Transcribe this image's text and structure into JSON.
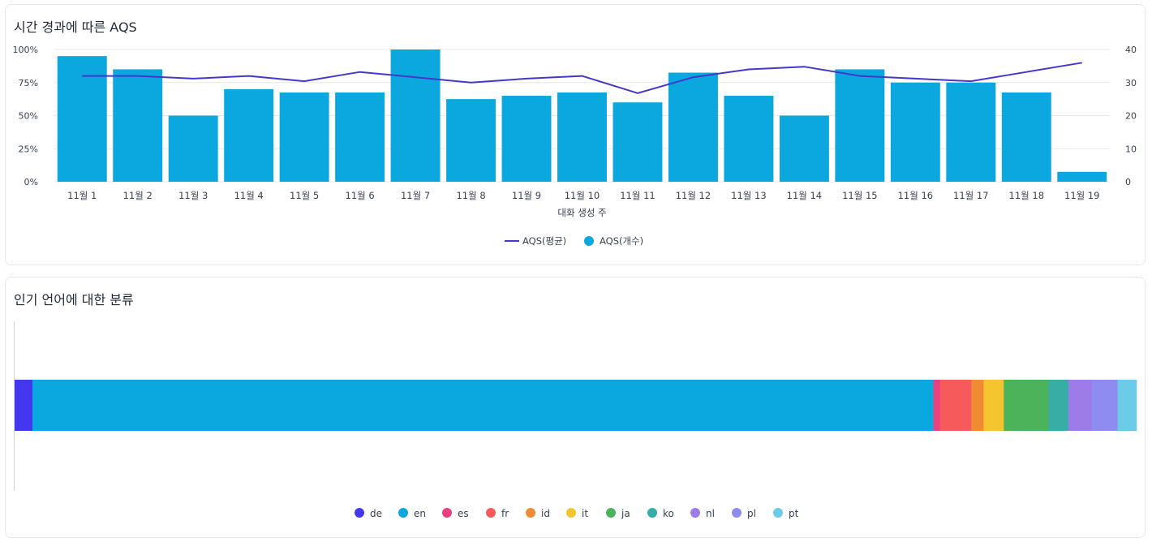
{
  "panels": {
    "aqs_title": "시간 경과에 따른 AQS",
    "lang_title": "인기 언어에 대한 분류"
  },
  "colors": {
    "bar": "#0aa8df",
    "line": "#4338ca",
    "grid": "#e5e7eb",
    "text": "#1f2937"
  },
  "chart_data": [
    {
      "type": "bar",
      "title": "시간 경과에 따른 AQS",
      "xlabel": "대화 생성 주",
      "categories": [
        "11월 1",
        "11월 2",
        "11월 3",
        "11월 4",
        "11월 5",
        "11월 6",
        "11월 7",
        "11월 8",
        "11월 9",
        "11월 10",
        "11월 11",
        "11월 12",
        "11월 13",
        "11월 14",
        "11월 15",
        "11월 16",
        "11월 17",
        "11월 18",
        "11월 19"
      ],
      "series": [
        {
          "name": "AQS(개수)",
          "type": "bar",
          "axis": "right",
          "color": "#0aa8df",
          "values": [
            38,
            34,
            20,
            28,
            27,
            27,
            40,
            25,
            26,
            27,
            24,
            33,
            26,
            20,
            34,
            30,
            30,
            27,
            3
          ]
        },
        {
          "name": "AQS(평균)",
          "type": "line",
          "axis": "left",
          "color": "#4338ca",
          "values": [
            80,
            80,
            78,
            80,
            76,
            83,
            79,
            75,
            78,
            80,
            67,
            79,
            85,
            87,
            80,
            78,
            76,
            83,
            90
          ]
        }
      ],
      "y_left": {
        "range": [
          0,
          100
        ],
        "ticks": [
          "100%",
          "75%",
          "50%",
          "25%",
          "0%"
        ]
      },
      "y_right": {
        "range": [
          0,
          40
        ],
        "ticks": [
          "40",
          "30",
          "20",
          "10",
          "0"
        ]
      },
      "grid": true,
      "legend": "bottom-center",
      "legend_items": [
        "AQS(평균)",
        "AQS(개수)"
      ]
    },
    {
      "type": "bar",
      "orientation": "horizontal-stacked",
      "title": "인기 언어에 대한 분류",
      "series": [
        {
          "name": "de",
          "value": 1.6,
          "color": "#4338f0"
        },
        {
          "name": "en",
          "value": 80.7,
          "color": "#0aa8df"
        },
        {
          "name": "es",
          "value": 0.6,
          "color": "#ec3f7e"
        },
        {
          "name": "fr",
          "value": 2.8,
          "color": "#f75a5a"
        },
        {
          "name": "id",
          "value": 1.1,
          "color": "#f08b33"
        },
        {
          "name": "it",
          "value": 1.8,
          "color": "#f5c530"
        },
        {
          "name": "ja",
          "value": 4.0,
          "color": "#4db35a"
        },
        {
          "name": "ko",
          "value": 1.8,
          "color": "#37ada6"
        },
        {
          "name": "nl",
          "value": 2.1,
          "color": "#9d7be8"
        },
        {
          "name": "pl",
          "value": 2.3,
          "color": "#8f8cf0"
        },
        {
          "name": "pt",
          "value": 1.7,
          "color": "#6ccbe8"
        }
      ],
      "legend": "bottom-center"
    }
  ]
}
